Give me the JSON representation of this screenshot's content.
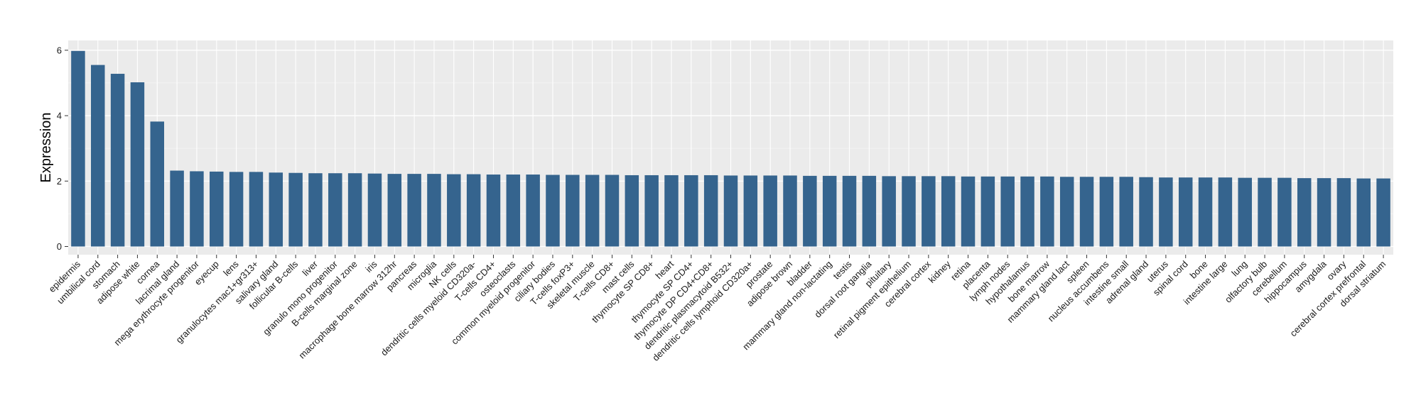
{
  "chart_data": {
    "type": "bar",
    "title": "",
    "xlabel": "",
    "ylabel": "Expression",
    "ylim": [
      -0.25,
      6.3
    ],
    "yticks": [
      0,
      2,
      4,
      6
    ],
    "grid": true,
    "legend": "none",
    "colors": {
      "bar": "#35648E",
      "panel": "#EBEBEB",
      "grid_major": "#FFFFFF",
      "grid_minor": "#F5F5F5",
      "tick": "#333333"
    },
    "categories": [
      "epidermis",
      "umbilical cord",
      "stomach",
      "adipose white",
      "cornea",
      "lacrimal gland",
      "mega erythrocyte progenitor",
      "eyecup",
      "lens",
      "granulocytes mac1+gr313+",
      "salivary gland",
      "follicular B-cells",
      "liver",
      "granulo mono progenitor",
      "B-cells marginal zone",
      "iris",
      "macrophage bone marrow 312hr",
      "pancreas",
      "microglia",
      "NK cells",
      "dendritic cells myeloid CD320a-",
      "T-cells CD4+",
      "osteoclasts",
      "common myeloid progenitor",
      "ciliary bodies",
      "T-cells foxP3+",
      "skeletal muscle",
      "T-cells CD8+",
      "mast cells",
      "thymocyte SP CD8+",
      "heart",
      "thymocyte SP CD4+",
      "thymocyte DP CD4+CD8+",
      "dendritic plasmacytoid B532+",
      "dendritic cells lymphoid CD320a+",
      "prostate",
      "adipose brown",
      "bladder",
      "mammary gland non-lactating",
      "testis",
      "dorsal root ganglia",
      "pituitary",
      "retinal pigment epithelium",
      "cerebral cortex",
      "kidney",
      "retina",
      "placenta",
      "lymph nodes",
      "hypothalamus",
      "bone marrow",
      "mammary gland  lact",
      "spleen",
      "nucleus accumbens",
      "intestine small",
      "adrenal gland",
      "uterus",
      "spinal cord",
      "bone",
      "intestine large",
      "lung",
      "olfactory bulb",
      "cerebellum",
      "hippocampus",
      "amygdala",
      "ovary",
      "cerebral cortex prefrontal",
      "dorsal striatum"
    ],
    "values": [
      5.98,
      5.55,
      5.28,
      5.02,
      3.82,
      2.32,
      2.3,
      2.29,
      2.28,
      2.28,
      2.26,
      2.25,
      2.24,
      2.24,
      2.24,
      2.23,
      2.22,
      2.22,
      2.22,
      2.21,
      2.21,
      2.2,
      2.2,
      2.2,
      2.19,
      2.19,
      2.19,
      2.19,
      2.18,
      2.18,
      2.18,
      2.18,
      2.18,
      2.17,
      2.17,
      2.17,
      2.17,
      2.16,
      2.16,
      2.16,
      2.16,
      2.15,
      2.15,
      2.15,
      2.15,
      2.14,
      2.14,
      2.14,
      2.14,
      2.14,
      2.13,
      2.13,
      2.13,
      2.13,
      2.12,
      2.11,
      2.11,
      2.11,
      2.11,
      2.1,
      2.1,
      2.1,
      2.09,
      2.09,
      2.09,
      2.08,
      2.08
    ]
  }
}
